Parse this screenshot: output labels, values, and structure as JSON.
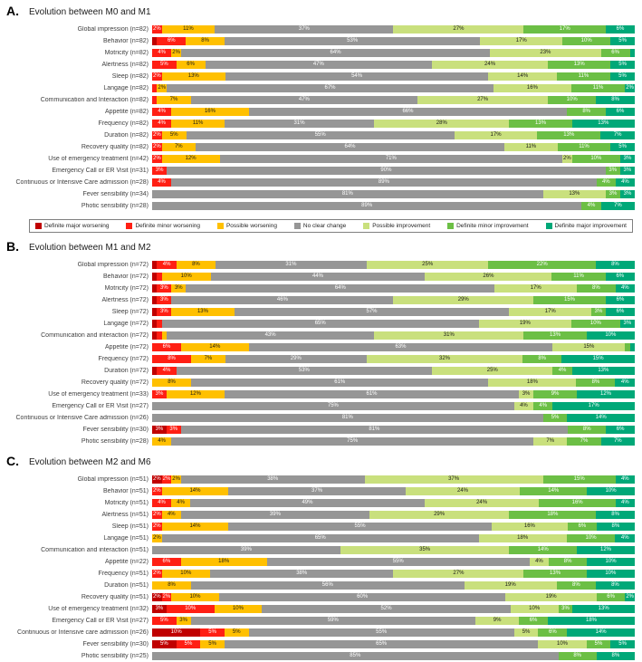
{
  "figure": {
    "background": "#ffffff"
  },
  "legend": {
    "items": [
      {
        "label": "Definite major worsening",
        "color": "#c00000"
      },
      {
        "label": "Definite minor worsening",
        "color": "#ff1f14"
      },
      {
        "label": "Possible worsening",
        "color": "#ffc000"
      },
      {
        "label": "No clear change",
        "color": "#969696"
      },
      {
        "label": "Possible improvement",
        "color": "#c9e07d"
      },
      {
        "label": "Definite minor improvement",
        "color": "#6cbf45"
      },
      {
        "label": "Definite major improvement",
        "color": "#00a878"
      }
    ]
  },
  "chart_data": [
    {
      "type": "bar",
      "stacked": true,
      "orientation": "horizontal",
      "panel_letter": "A.",
      "title": "Evolution between M0 and M1",
      "unit": "%",
      "xlim": [
        0,
        100
      ],
      "categories": [
        "Global impression (n=82)",
        "Behavior (n=82)",
        "Motricity (n=82)",
        "Alertness (n=82)",
        "Sleep (n=82)",
        "Langage (n=82)",
        "Communication and Interaction (n=82)",
        "Appetite (n=82)",
        "Frequency (n=82)",
        "Duration (n=82)",
        "Recovery quality (n=82)",
        "Use of emergency treatment (n=42)",
        "Emergency Call or ER Visit (n=31)",
        "Continuous or Intensive Care admission (n=28)",
        "Fever sensibility (n=34)",
        "Photic sensibility (n=28)"
      ],
      "series": [
        {
          "name": "Definite major worsening",
          "values": [
            0,
            1,
            0,
            0,
            0,
            0,
            0,
            0,
            0,
            0,
            0,
            0,
            0,
            0,
            0,
            0
          ]
        },
        {
          "name": "Definite minor worsening",
          "values": [
            2,
            6,
            4,
            5,
            2,
            1,
            1,
            4,
            4,
            2,
            2,
            2,
            3,
            4,
            0,
            0
          ]
        },
        {
          "name": "Possible worsening",
          "values": [
            11,
            8,
            2,
            6,
            13,
            2,
            7,
            16,
            11,
            5,
            7,
            12,
            0,
            0,
            0,
            0
          ]
        },
        {
          "name": "No clear change",
          "values": [
            37,
            53,
            64,
            47,
            54,
            67,
            47,
            66,
            31,
            55,
            64,
            71,
            90,
            89,
            81,
            89
          ]
        },
        {
          "name": "Possible improvement",
          "values": [
            27,
            17,
            23,
            24,
            14,
            16,
            27,
            0,
            28,
            17,
            11,
            2,
            0,
            0,
            13,
            0
          ]
        },
        {
          "name": "Definite minor improvement",
          "values": [
            17,
            10,
            6,
            13,
            11,
            11,
            10,
            8,
            13,
            13,
            11,
            10,
            3,
            4,
            3,
            4
          ]
        },
        {
          "name": "Definite major improvement",
          "values": [
            6,
            5,
            1,
            5,
            5,
            2,
            8,
            6,
            13,
            7,
            5,
            3,
            3,
            4,
            3,
            7
          ]
        }
      ]
    },
    {
      "type": "bar",
      "stacked": true,
      "orientation": "horizontal",
      "panel_letter": "B.",
      "title": "Evolution between M1 and M2",
      "unit": "%",
      "xlim": [
        0,
        100
      ],
      "categories": [
        "Global impression (n=72)",
        "Behavior (n=72)",
        "Motricity (n=72)",
        "Alertness (n=72)",
        "Sleep (n=72)",
        "Langage (n=72)",
        "Communication and interaction (n=72)",
        "Appetite (n=72)",
        "Frequency (n=72)",
        "Duration (n=72)",
        "Recovery quality (n=72)",
        "Use of emergency treatment (n=33)",
        "Emergency Call or ER Visit (n=27)",
        "Continuous or Intensive Care admission (n=26)",
        "Fever sensibility (n=30)",
        "Photic sensibility (n=28)"
      ],
      "series": [
        {
          "name": "Definite major worsening",
          "values": [
            1,
            1,
            1,
            1,
            1,
            1,
            1,
            0,
            0,
            1,
            0,
            0,
            0,
            0,
            3,
            0
          ]
        },
        {
          "name": "Definite minor worsening",
          "values": [
            4,
            1,
            3,
            3,
            3,
            1,
            1,
            6,
            8,
            4,
            0,
            3,
            0,
            0,
            3,
            0
          ]
        },
        {
          "name": "Possible worsening",
          "values": [
            8,
            10,
            3,
            0,
            13,
            0,
            1,
            14,
            7,
            0,
            8,
            12,
            0,
            0,
            0,
            4
          ]
        },
        {
          "name": "No clear change",
          "values": [
            31,
            44,
            64,
            46,
            57,
            65,
            43,
            63,
            29,
            53,
            61,
            61,
            75,
            81,
            81,
            75
          ]
        },
        {
          "name": "Possible improvement",
          "values": [
            25,
            26,
            17,
            29,
            17,
            19,
            31,
            15,
            32,
            25,
            18,
            3,
            4,
            0,
            0,
            7
          ]
        },
        {
          "name": "Definite minor improvement",
          "values": [
            22,
            11,
            8,
            15,
            3,
            10,
            13,
            1,
            8,
            4,
            8,
            9,
            4,
            5,
            8,
            7
          ]
        },
        {
          "name": "Definite major improvement",
          "values": [
            8,
            6,
            4,
            6,
            6,
            3,
            10,
            1,
            15,
            13,
            4,
            12,
            17,
            14,
            6,
            7
          ]
        }
      ]
    },
    {
      "type": "bar",
      "stacked": true,
      "orientation": "horizontal",
      "panel_letter": "C.",
      "title": "Evolution between M2 and M6",
      "unit": "%",
      "xlim": [
        0,
        100
      ],
      "categories": [
        "Global impression (n=51)",
        "Behavior (n=51)",
        "Motricity (n=51)",
        "Alertness (n=51)",
        "Sleep (n=51)",
        "Langage (n=51)",
        "Communication and interaction (n=51)",
        "Appetite (n=22)",
        "Frequency (n=51)",
        "Duration (n=51)",
        "Recovery quality (n=51)",
        "Use of emergency treatment (n=32)",
        "Emergency Call or ER Visit (n=27)",
        "Continuous or Intensive care admission (n=26)",
        "Fever sensibility (n=30)",
        "Photic sensibility (n=25)"
      ],
      "series": [
        {
          "name": "Definite major worsening",
          "values": [
            2,
            0,
            0,
            0,
            0,
            0,
            0,
            0,
            0,
            0,
            2,
            3,
            0,
            10,
            5,
            0
          ]
        },
        {
          "name": "Definite minor worsening",
          "values": [
            2,
            2,
            4,
            2,
            2,
            0,
            0,
            6,
            2,
            0,
            2,
            10,
            5,
            5,
            5,
            0
          ]
        },
        {
          "name": "Possible worsening",
          "values": [
            2,
            14,
            4,
            4,
            14,
            2,
            0,
            18,
            10,
            8,
            10,
            10,
            3,
            5,
            5,
            0
          ]
        },
        {
          "name": "No clear change",
          "values": [
            38,
            37,
            49,
            39,
            55,
            65,
            39,
            55,
            38,
            56,
            60,
            52,
            59,
            55,
            65,
            85
          ]
        },
        {
          "name": "Possible improvement",
          "values": [
            37,
            24,
            24,
            29,
            16,
            18,
            35,
            4,
            27,
            19,
            19,
            10,
            9,
            5,
            10,
            0
          ]
        },
        {
          "name": "Definite minor improvement",
          "values": [
            15,
            14,
            16,
            18,
            6,
            10,
            14,
            8,
            13,
            8,
            6,
            3,
            6,
            6,
            5,
            8
          ]
        },
        {
          "name": "Definite major improvement",
          "values": [
            4,
            10,
            4,
            8,
            8,
            4,
            12,
            10,
            10,
            8,
            2,
            13,
            18,
            14,
            5,
            8
          ]
        }
      ]
    }
  ]
}
